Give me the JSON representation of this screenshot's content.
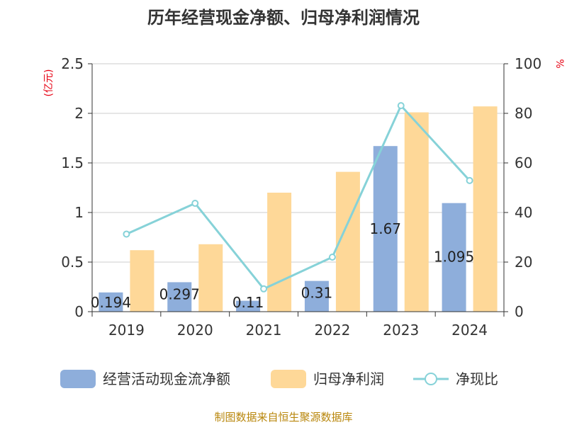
{
  "chart_data": {
    "type": "bar",
    "title": "历年经营现金净额、归母净利润情况",
    "categories": [
      "2019",
      "2020",
      "2021",
      "2022",
      "2023",
      "2024"
    ],
    "ylabel_left": "(亿元)",
    "ylabel_right": "%",
    "ylim_left": [
      0,
      2.5
    ],
    "ylim_right": [
      0,
      100
    ],
    "yticks_left": [
      "0",
      "0.5",
      "1",
      "1.5",
      "2",
      "2.5"
    ],
    "yticks_right": [
      "0",
      "20",
      "40",
      "60",
      "80",
      "100"
    ],
    "grid": true,
    "legend_position": "bottom",
    "series": [
      {
        "name": "经营活动现金流净额",
        "type": "bar",
        "axis": "left",
        "color": "#8eaedb",
        "values": [
          0.194,
          0.297,
          0.11,
          0.31,
          1.67,
          1.095
        ],
        "labels": [
          "0.194",
          "0.297",
          "0.11",
          "0.31",
          "1.67",
          "1.095"
        ]
      },
      {
        "name": "归母净利润",
        "type": "bar",
        "axis": "left",
        "color": "#fed898",
        "values": [
          0.62,
          0.68,
          1.2,
          1.41,
          2.01,
          2.07
        ]
      },
      {
        "name": "净现比",
        "type": "line",
        "axis": "right",
        "color": "#86d2d8",
        "values": [
          31.3,
          43.7,
          9.2,
          22.0,
          83.1,
          52.9
        ]
      }
    ]
  },
  "source": "制图数据来自恒生聚源数据库"
}
